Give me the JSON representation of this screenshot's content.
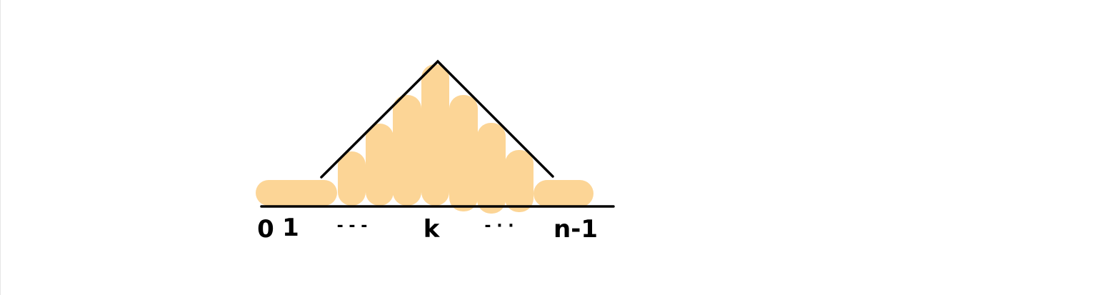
{
  "diagram": {
    "labels": {
      "zero": "0",
      "one": "1",
      "dots_left": "- - -",
      "k": "k",
      "dots_right": "- · ·",
      "n_minus_1": "n-1"
    },
    "colors": {
      "bar_fill": "#fcd596",
      "stroke": "#000000",
      "background": "#ffffff"
    },
    "shape": "pyramid"
  }
}
